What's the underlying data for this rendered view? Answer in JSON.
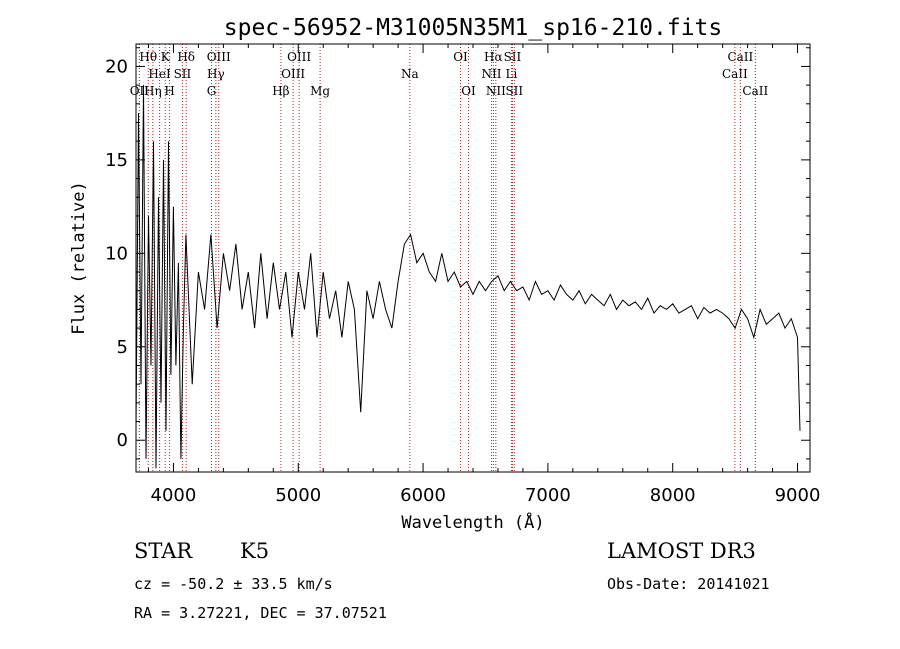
{
  "chart_data": {
    "type": "line",
    "title": "spec-56952-M31005N35M1_sp16-210.fits",
    "xlabel": "Wavelength (Å)",
    "ylabel": "Flux (relative)",
    "xlim": [
      3700,
      9100
    ],
    "ylim": [
      -1.7,
      21.2
    ],
    "x_ticks": [
      4000,
      5000,
      6000,
      7000,
      8000,
      9000
    ],
    "x_tick_labels": [
      "4000",
      "5000",
      "6000",
      "7000",
      "8000",
      "9000"
    ],
    "y_ticks": [
      0,
      5,
      10,
      15,
      20
    ],
    "y_tick_labels": [
      "0",
      "5",
      "10",
      "15",
      "20"
    ],
    "line_color": "#000000",
    "marker_color": "#b22222",
    "series": [
      {
        "name": "flux",
        "x": [
          3700,
          3720,
          3740,
          3760,
          3780,
          3800,
          3820,
          3840,
          3860,
          3880,
          3900,
          3920,
          3940,
          3960,
          3980,
          4000,
          4020,
          4040,
          4060,
          4080,
          4100,
          4150,
          4200,
          4250,
          4300,
          4350,
          4400,
          4450,
          4500,
          4550,
          4600,
          4650,
          4700,
          4750,
          4800,
          4850,
          4900,
          4950,
          5000,
          5050,
          5100,
          5150,
          5200,
          5250,
          5300,
          5350,
          5400,
          5450,
          5500,
          5550,
          5600,
          5650,
          5700,
          5750,
          5800,
          5850,
          5900,
          5950,
          6000,
          6050,
          6100,
          6150,
          6200,
          6250,
          6300,
          6350,
          6400,
          6450,
          6500,
          6550,
          6600,
          6650,
          6700,
          6750,
          6800,
          6850,
          6900,
          6950,
          7000,
          7050,
          7100,
          7150,
          7200,
          7250,
          7300,
          7350,
          7400,
          7450,
          7500,
          7550,
          7600,
          7650,
          7700,
          7750,
          7800,
          7850,
          7900,
          7950,
          8000,
          8050,
          8100,
          8150,
          8200,
          8250,
          8300,
          8350,
          8400,
          8450,
          8500,
          8550,
          8600,
          8650,
          8700,
          8750,
          8800,
          8850,
          8900,
          8950,
          9000,
          9020
        ],
        "y": [
          0.5,
          17.5,
          3.0,
          19.0,
          -1.0,
          12.0,
          4.0,
          16.0,
          -1.5,
          13.0,
          2.0,
          15.0,
          0.5,
          16.0,
          3.5,
          12.5,
          4.0,
          9.5,
          -1.0,
          6.0,
          11.0,
          3.0,
          9.0,
          7.0,
          11.0,
          6.0,
          10.0,
          8.0,
          10.5,
          7.0,
          9.0,
          6.0,
          10.0,
          6.5,
          9.5,
          7.0,
          9.0,
          5.5,
          9.0,
          7.0,
          10.0,
          5.5,
          9.0,
          6.5,
          8.0,
          5.5,
          8.5,
          7.0,
          1.5,
          8.0,
          6.5,
          8.5,
          7.0,
          6.0,
          8.5,
          10.5,
          11.0,
          9.5,
          10.0,
          9.0,
          8.5,
          10.0,
          8.5,
          9.0,
          8.2,
          8.5,
          7.8,
          8.5,
          8.0,
          8.5,
          8.8,
          8.0,
          8.5,
          8.0,
          8.2,
          7.5,
          8.5,
          7.8,
          8.0,
          7.5,
          8.3,
          7.8,
          7.5,
          8.0,
          7.3,
          7.8,
          7.5,
          7.2,
          7.8,
          7.0,
          7.5,
          7.2,
          7.4,
          7.0,
          7.6,
          6.8,
          7.2,
          7.0,
          7.3,
          6.8,
          7.0,
          7.2,
          6.5,
          7.1,
          6.8,
          7.0,
          6.8,
          6.5,
          6.0,
          7.0,
          6.5,
          5.5,
          7.0,
          6.2,
          6.5,
          6.8,
          6.0,
          6.5,
          5.5,
          0.5
        ]
      }
    ],
    "spectral_lines": [
      {
        "label": "OII",
        "wavelength": 3727,
        "row": 2
      },
      {
        "label": "Hθ",
        "wavelength": 3798,
        "row": 0
      },
      {
        "label": "Hη",
        "wavelength": 3835,
        "row": 2
      },
      {
        "label": "HeI",
        "wavelength": 3889,
        "row": 1
      },
      {
        "label": "K",
        "wavelength": 3934,
        "row": 0
      },
      {
        "label": "H",
        "wavelength": 3969,
        "row": 2
      },
      {
        "label": "SII",
        "wavelength": 4072,
        "row": 1
      },
      {
        "label": "Hδ",
        "wavelength": 4102,
        "row": 0
      },
      {
        "label": "G",
        "wavelength": 4305,
        "row": 2
      },
      {
        "label": "Hγ",
        "wavelength": 4340,
        "row": 1
      },
      {
        "label": "OIII",
        "wavelength": 4363,
        "row": 0
      },
      {
        "label": "Hβ",
        "wavelength": 4861,
        "row": 2
      },
      {
        "label": "OIII",
        "wavelength": 4959,
        "row": 1
      },
      {
        "label": "OIII",
        "wavelength": 5007,
        "row": 0
      },
      {
        "label": "Mg",
        "wavelength": 5175,
        "row": 2
      },
      {
        "label": "Na",
        "wavelength": 5894,
        "row": 1
      },
      {
        "label": "OI",
        "wavelength": 6300,
        "row": 0
      },
      {
        "label": "OI",
        "wavelength": 6364,
        "row": 2
      },
      {
        "label": "NII",
        "wavelength": 6548,
        "row": 1
      },
      {
        "label": "Hα",
        "wavelength": 6563,
        "row": 0
      },
      {
        "label": "NII",
        "wavelength": 6583,
        "row": 2
      },
      {
        "label": "Li",
        "wavelength": 6708,
        "row": 1
      },
      {
        "label": "SII",
        "wavelength": 6716,
        "row": 0
      },
      {
        "label": "SII",
        "wavelength": 6731,
        "row": 2
      },
      {
        "label": "CaII",
        "wavelength": 8498,
        "row": 1
      },
      {
        "label": "CaII",
        "wavelength": 8542,
        "row": 0
      },
      {
        "label": "CaII",
        "wavelength": 8662,
        "row": 2
      }
    ]
  },
  "info": {
    "class": "STAR",
    "subclass": "K5",
    "survey": "LAMOST DR3",
    "cz": "cz = -50.2 ± 33.5 km/s",
    "obs_date": "Obs-Date: 20141021",
    "coords": "RA =   3.27221, DEC =  37.07521"
  }
}
